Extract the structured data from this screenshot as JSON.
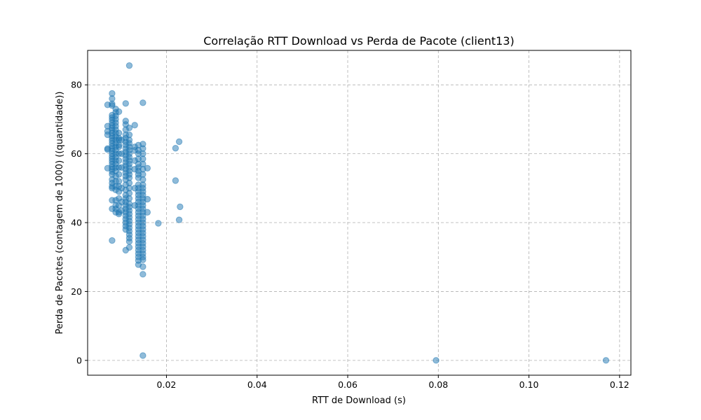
{
  "chart_data": {
    "type": "scatter",
    "title": "Correlação RTT Download vs Perda de Pacote (client13)",
    "xlabel": "RTT de Download (s)",
    "ylabel": "Perda de Pacotes (contagem de 1000) ((quantidade))",
    "xlim": [
      0.0026,
      0.1225
    ],
    "ylim": [
      -4.3,
      90.0
    ],
    "x_ticks": [
      0.02,
      0.04,
      0.06,
      0.08,
      0.1,
      0.12
    ],
    "x_tick_labels": [
      "0.02",
      "0.04",
      "0.06",
      "0.08",
      "0.10",
      "0.12"
    ],
    "y_ticks": [
      0,
      20,
      40,
      60,
      80
    ],
    "y_tick_labels": [
      "0",
      "20",
      "40",
      "60",
      "80"
    ],
    "grid": true,
    "grid_style": "dashed",
    "legend": "none",
    "marker_color": "#1f77b4",
    "marker_alpha": 0.5,
    "series": [
      {
        "points": [
          [
            0.007,
            74.2
          ],
          [
            0.007,
            68.0
          ],
          [
            0.007,
            66.5
          ],
          [
            0.007,
            65.5
          ],
          [
            0.007,
            61.5
          ],
          [
            0.007,
            61.2
          ],
          [
            0.007,
            55.8
          ],
          [
            0.008,
            77.5
          ],
          [
            0.008,
            76.0
          ],
          [
            0.008,
            74.5
          ],
          [
            0.008,
            74.0
          ],
          [
            0.008,
            71.2
          ],
          [
            0.008,
            70.5
          ],
          [
            0.008,
            69.8
          ],
          [
            0.008,
            69.0
          ],
          [
            0.008,
            68.2
          ],
          [
            0.008,
            67.5
          ],
          [
            0.008,
            66.8
          ],
          [
            0.008,
            66.0
          ],
          [
            0.008,
            65.2
          ],
          [
            0.008,
            64.5
          ],
          [
            0.008,
            63.8
          ],
          [
            0.008,
            63.0
          ],
          [
            0.008,
            62.2
          ],
          [
            0.008,
            61.5
          ],
          [
            0.008,
            60.8
          ],
          [
            0.008,
            60.0
          ],
          [
            0.008,
            59.2
          ],
          [
            0.008,
            58.5
          ],
          [
            0.008,
            57.8
          ],
          [
            0.008,
            57.0
          ],
          [
            0.008,
            56.2
          ],
          [
            0.008,
            55.5
          ],
          [
            0.008,
            54.8
          ],
          [
            0.008,
            54.0
          ],
          [
            0.008,
            52.5
          ],
          [
            0.008,
            51.5
          ],
          [
            0.008,
            50.5
          ],
          [
            0.008,
            50.0
          ],
          [
            0.008,
            46.5
          ],
          [
            0.008,
            44.0
          ],
          [
            0.008,
            34.8
          ],
          [
            0.0088,
            73.0
          ],
          [
            0.0088,
            72.0
          ],
          [
            0.0088,
            71.0
          ],
          [
            0.0088,
            70.0
          ],
          [
            0.0088,
            69.0
          ],
          [
            0.0088,
            68.0
          ],
          [
            0.0088,
            67.0
          ],
          [
            0.0088,
            66.0
          ],
          [
            0.0088,
            65.0
          ],
          [
            0.0088,
            64.0
          ],
          [
            0.0088,
            63.0
          ],
          [
            0.0088,
            62.0
          ],
          [
            0.0088,
            61.0
          ],
          [
            0.0088,
            60.0
          ],
          [
            0.0088,
            59.0
          ],
          [
            0.0088,
            58.0
          ],
          [
            0.0088,
            57.0
          ],
          [
            0.0088,
            56.0
          ],
          [
            0.0088,
            55.0
          ],
          [
            0.0088,
            53.5
          ],
          [
            0.0088,
            52.0
          ],
          [
            0.0088,
            50.5
          ],
          [
            0.0088,
            49.5
          ],
          [
            0.0088,
            46.5
          ],
          [
            0.0088,
            45.0
          ],
          [
            0.0088,
            44.0
          ],
          [
            0.0088,
            43.0
          ],
          [
            0.0095,
            72.2
          ],
          [
            0.0095,
            66.0
          ],
          [
            0.0095,
            64.0
          ],
          [
            0.0095,
            62.0
          ],
          [
            0.0095,
            60.0
          ],
          [
            0.0095,
            58.0
          ],
          [
            0.0095,
            56.0
          ],
          [
            0.0095,
            54.0
          ],
          [
            0.0095,
            52.0
          ],
          [
            0.0095,
            50.5
          ],
          [
            0.0095,
            49.0
          ],
          [
            0.0095,
            47.0
          ],
          [
            0.0095,
            45.0
          ],
          [
            0.0095,
            43.0
          ],
          [
            0.0095,
            42.5
          ],
          [
            0.0095,
            64.5
          ],
          [
            0.0095,
            62.5
          ],
          [
            0.0101,
            64.0
          ],
          [
            0.0101,
            60.0
          ],
          [
            0.0101,
            56.0
          ],
          [
            0.0101,
            50.0
          ],
          [
            0.0101,
            46.0
          ],
          [
            0.0101,
            43.5
          ],
          [
            0.011,
            74.6
          ],
          [
            0.011,
            69.5
          ],
          [
            0.011,
            68.5
          ],
          [
            0.011,
            67.0
          ],
          [
            0.011,
            65.5
          ],
          [
            0.011,
            64.5
          ],
          [
            0.011,
            63.5
          ],
          [
            0.011,
            62.5
          ],
          [
            0.011,
            61.5
          ],
          [
            0.011,
            60.5
          ],
          [
            0.011,
            59.5
          ],
          [
            0.011,
            58.5
          ],
          [
            0.011,
            57.5
          ],
          [
            0.011,
            56.5
          ],
          [
            0.011,
            55.5
          ],
          [
            0.011,
            54.5
          ],
          [
            0.011,
            53.5
          ],
          [
            0.011,
            52.5
          ],
          [
            0.011,
            51.0
          ],
          [
            0.011,
            49.5
          ],
          [
            0.011,
            48.0
          ],
          [
            0.011,
            47.0
          ],
          [
            0.011,
            46.0
          ],
          [
            0.011,
            45.0
          ],
          [
            0.011,
            44.0
          ],
          [
            0.011,
            43.0
          ],
          [
            0.011,
            42.0
          ],
          [
            0.011,
            41.0
          ],
          [
            0.011,
            40.0
          ],
          [
            0.011,
            39.0
          ],
          [
            0.011,
            38.0
          ],
          [
            0.011,
            32.0
          ],
          [
            0.0118,
            85.6
          ],
          [
            0.0118,
            67.5
          ],
          [
            0.0118,
            65.5
          ],
          [
            0.0118,
            64.0
          ],
          [
            0.0118,
            63.0
          ],
          [
            0.0118,
            62.0
          ],
          [
            0.0118,
            61.0
          ],
          [
            0.0118,
            60.0
          ],
          [
            0.0118,
            59.0
          ],
          [
            0.0118,
            58.0
          ],
          [
            0.0118,
            57.0
          ],
          [
            0.0118,
            56.0
          ],
          [
            0.0118,
            55.0
          ],
          [
            0.0118,
            54.0
          ],
          [
            0.0118,
            53.0
          ],
          [
            0.0118,
            51.5
          ],
          [
            0.0118,
            50.0
          ],
          [
            0.0118,
            48.5
          ],
          [
            0.0118,
            47.0
          ],
          [
            0.0118,
            45.5
          ],
          [
            0.0118,
            44.5
          ],
          [
            0.0118,
            43.5
          ],
          [
            0.0118,
            42.5
          ],
          [
            0.0118,
            41.5
          ],
          [
            0.0118,
            40.5
          ],
          [
            0.0118,
            39.5
          ],
          [
            0.0118,
            38.5
          ],
          [
            0.0118,
            37.5
          ],
          [
            0.0118,
            36.5
          ],
          [
            0.0118,
            35.5
          ],
          [
            0.0118,
            34.5
          ],
          [
            0.0118,
            32.8
          ],
          [
            0.013,
            68.3
          ],
          [
            0.013,
            62.0
          ],
          [
            0.013,
            61.0
          ],
          [
            0.013,
            58.0
          ],
          [
            0.013,
            55.5
          ],
          [
            0.013,
            50.0
          ],
          [
            0.013,
            45.0
          ],
          [
            0.0138,
            62.5
          ],
          [
            0.0138,
            61.0
          ],
          [
            0.0138,
            60.0
          ],
          [
            0.0138,
            58.5
          ],
          [
            0.0138,
            57.0
          ],
          [
            0.0138,
            56.0
          ],
          [
            0.0138,
            55.0
          ],
          [
            0.0138,
            54.0
          ],
          [
            0.0138,
            53.0
          ],
          [
            0.0138,
            51.0
          ],
          [
            0.0138,
            50.0
          ],
          [
            0.0138,
            49.0
          ],
          [
            0.0138,
            48.0
          ],
          [
            0.0138,
            47.0
          ],
          [
            0.0138,
            46.0
          ],
          [
            0.0138,
            45.0
          ],
          [
            0.0138,
            44.0
          ],
          [
            0.0138,
            43.0
          ],
          [
            0.0138,
            42.0
          ],
          [
            0.0138,
            41.0
          ],
          [
            0.0138,
            40.0
          ],
          [
            0.0138,
            39.0
          ],
          [
            0.0138,
            38.0
          ],
          [
            0.0138,
            37.0
          ],
          [
            0.0138,
            36.0
          ],
          [
            0.0138,
            35.0
          ],
          [
            0.0138,
            34.0
          ],
          [
            0.0138,
            33.0
          ],
          [
            0.0138,
            32.0
          ],
          [
            0.0138,
            31.0
          ],
          [
            0.0138,
            30.0
          ],
          [
            0.0138,
            29.0
          ],
          [
            0.0138,
            27.8
          ],
          [
            0.0148,
            74.8
          ],
          [
            0.0148,
            62.8
          ],
          [
            0.0148,
            61.5
          ],
          [
            0.0148,
            60.0
          ],
          [
            0.0148,
            58.5
          ],
          [
            0.0148,
            57.0
          ],
          [
            0.0148,
            55.5
          ],
          [
            0.0148,
            54.0
          ],
          [
            0.0148,
            52.5
          ],
          [
            0.0148,
            51.0
          ],
          [
            0.0148,
            50.0
          ],
          [
            0.0148,
            49.0
          ],
          [
            0.0148,
            48.0
          ],
          [
            0.0148,
            47.0
          ],
          [
            0.0148,
            46.0
          ],
          [
            0.0148,
            45.0
          ],
          [
            0.0148,
            44.0
          ],
          [
            0.0148,
            43.0
          ],
          [
            0.0148,
            42.0
          ],
          [
            0.0148,
            41.0
          ],
          [
            0.0148,
            40.0
          ],
          [
            0.0148,
            39.0
          ],
          [
            0.0148,
            38.0
          ],
          [
            0.0148,
            37.0
          ],
          [
            0.0148,
            36.0
          ],
          [
            0.0148,
            35.0
          ],
          [
            0.0148,
            34.0
          ],
          [
            0.0148,
            33.0
          ],
          [
            0.0148,
            32.0
          ],
          [
            0.0148,
            31.0
          ],
          [
            0.0148,
            30.0
          ],
          [
            0.0148,
            29.2
          ],
          [
            0.0148,
            27.2
          ],
          [
            0.0148,
            25.0
          ],
          [
            0.0148,
            1.4
          ],
          [
            0.0158,
            55.8
          ],
          [
            0.0158,
            46.8
          ],
          [
            0.0158,
            43.0
          ],
          [
            0.0182,
            39.8
          ],
          [
            0.022,
            61.6
          ],
          [
            0.022,
            52.2
          ],
          [
            0.0228,
            63.5
          ],
          [
            0.0228,
            40.8
          ],
          [
            0.023,
            44.6
          ],
          [
            0.0795,
            0.0
          ],
          [
            0.117,
            0.0
          ]
        ]
      }
    ]
  }
}
